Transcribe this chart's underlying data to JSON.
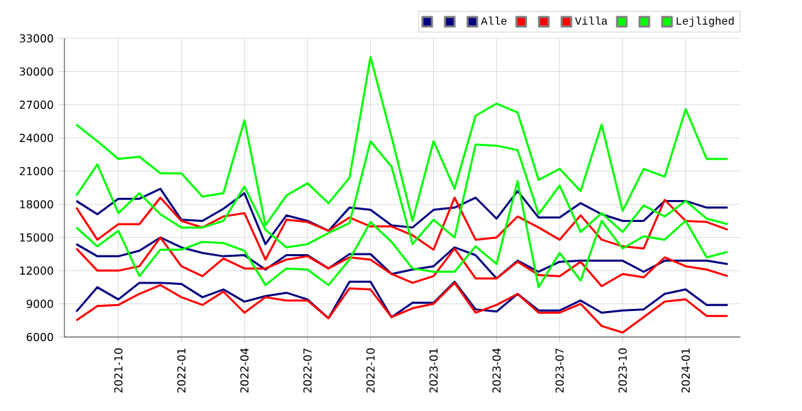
{
  "chart_data": {
    "type": "line",
    "x": [
      "2021-08",
      "2021-09",
      "2021-10",
      "2021-11",
      "2021-12",
      "2022-01",
      "2022-02",
      "2022-03",
      "2022-04",
      "2022-05",
      "2022-06",
      "2022-07",
      "2022-08",
      "2022-09",
      "2022-10",
      "2022-11",
      "2022-12",
      "2023-01",
      "2023-02",
      "2023-03",
      "2023-04",
      "2023-05",
      "2023-06",
      "2023-07",
      "2023-08",
      "2023-09",
      "2023-10",
      "2023-11",
      "2023-12",
      "2024-01",
      "2024-02",
      "2024-03"
    ],
    "series": [
      {
        "color": "#000080",
        "values": [
          18300,
          17100,
          18500,
          18500,
          19400,
          16600,
          16500,
          17600,
          19000,
          14400,
          17000,
          16500,
          15600,
          17700,
          17500,
          16100,
          15900,
          17500,
          17700,
          18600,
          16700,
          19200,
          16800,
          16800,
          18100,
          17100,
          16500,
          16500,
          18300,
          18300,
          17700,
          17700
        ]
      },
      {
        "color": "#000080",
        "values": [
          14400,
          13300,
          13300,
          13800,
          15000,
          14100,
          13600,
          13300,
          13400,
          12100,
          13400,
          13400,
          12200,
          13500,
          13500,
          11700,
          12100,
          12400,
          14100,
          13400,
          11300,
          12900,
          11900,
          12800,
          12900,
          12900,
          12900,
          11900,
          12900,
          12900,
          12900,
          12600
        ]
      },
      {
        "name": "Alle",
        "color": "#000080",
        "values": [
          8300,
          10500,
          9400,
          10900,
          10900,
          10800,
          9600,
          10300,
          9200,
          9700,
          10000,
          9400,
          7700,
          11000,
          11000,
          7800,
          9100,
          9100,
          11000,
          8500,
          8300,
          9900,
          8400,
          8400,
          9300,
          8200,
          8400,
          8500,
          9900,
          10300,
          8900,
          8900
        ]
      },
      {
        "color": "#ff0000",
        "values": [
          17700,
          14800,
          16200,
          16200,
          18600,
          16500,
          15900,
          16900,
          17200,
          13000,
          16600,
          16400,
          15600,
          16800,
          16000,
          16000,
          15200,
          13900,
          18600,
          14800,
          15000,
          16900,
          15900,
          14800,
          17000,
          14800,
          14200,
          14000,
          18400,
          16500,
          16400,
          15700
        ]
      },
      {
        "color": "#ff0000",
        "values": [
          14000,
          12000,
          12000,
          12400,
          15000,
          12400,
          11500,
          13100,
          12200,
          12200,
          13000,
          13300,
          12200,
          13200,
          13000,
          11700,
          10900,
          11500,
          14000,
          11300,
          11300,
          12800,
          11600,
          11500,
          12800,
          10600,
          11700,
          11400,
          13200,
          12400,
          12100,
          11500
        ]
      },
      {
        "name": "Villa",
        "color": "#ff0000",
        "values": [
          7500,
          8800,
          8900,
          9900,
          10700,
          9600,
          8900,
          10100,
          8200,
          9600,
          9300,
          9300,
          7700,
          10400,
          10300,
          7800,
          8600,
          9000,
          10900,
          8200,
          8900,
          9900,
          8200,
          8200,
          9000,
          7000,
          6400,
          7800,
          9200,
          9400,
          7900,
          7900
        ]
      },
      {
        "color": "#00ff00",
        "values": [
          25200,
          23700,
          22100,
          22300,
          20800,
          20800,
          18700,
          19000,
          25600,
          16100,
          18800,
          19900,
          18100,
          20400,
          31300,
          24100,
          16500,
          23700,
          19400,
          26000,
          27100,
          26300,
          20200,
          21200,
          19200,
          25200,
          17400,
          21200,
          20500,
          26600,
          22100,
          22100
        ]
      },
      {
        "color": "#00ff00",
        "values": [
          18800,
          21600,
          17200,
          19000,
          17100,
          15900,
          15900,
          16500,
          19600,
          15700,
          14100,
          14400,
          15400,
          16300,
          23700,
          21400,
          14400,
          16600,
          15000,
          23400,
          23300,
          22900,
          17100,
          19700,
          15500,
          17200,
          15500,
          17900,
          16900,
          18300,
          16700,
          16200
        ]
      },
      {
        "name": "Lejlighed",
        "color": "#00ff00",
        "values": [
          15900,
          14200,
          15600,
          11500,
          13900,
          13900,
          14600,
          14500,
          13800,
          10700,
          12200,
          12100,
          10700,
          13000,
          16400,
          14600,
          12200,
          11900,
          11900,
          14200,
          12600,
          20100,
          10500,
          13600,
          11100,
          16500,
          14000,
          15100,
          14800,
          16500,
          13200,
          13700
        ]
      }
    ],
    "xlim": [
      "2021-07-14",
      "2024-03-19"
    ],
    "xticks": [
      "2021-10",
      "2022-01",
      "2022-04",
      "2022-07",
      "2022-10",
      "2023-01",
      "2023-04",
      "2023-07",
      "2023-10",
      "2024-01"
    ],
    "ylim": [
      6000,
      33000
    ],
    "yticks": [
      6000,
      9000,
      12000,
      15000,
      18000,
      21000,
      24000,
      27000,
      30000,
      33000
    ],
    "grid": true,
    "legend": "top right",
    "marker": "none",
    "line_style": "solid"
  }
}
